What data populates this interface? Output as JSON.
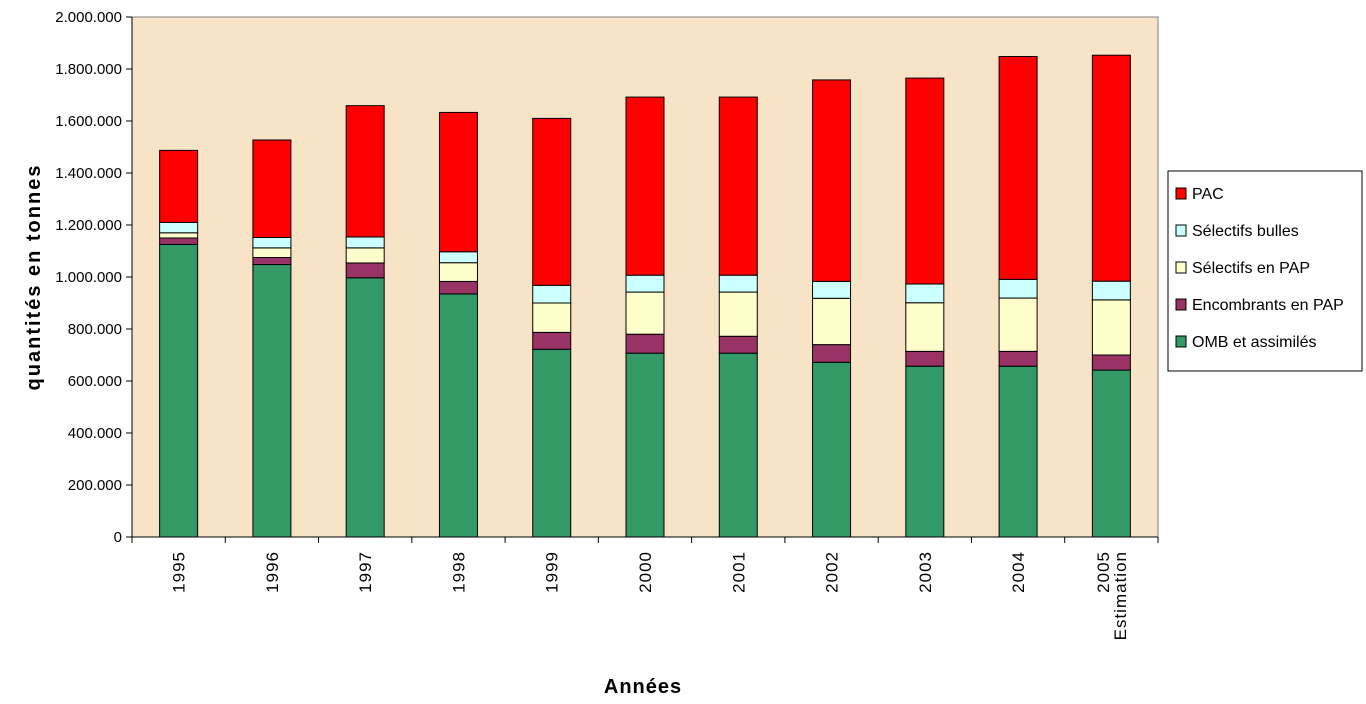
{
  "chart_data": {
    "type": "bar",
    "stacked": true,
    "categories": [
      [
        "1995"
      ],
      [
        "1996"
      ],
      [
        "1997"
      ],
      [
        "1998"
      ],
      [
        "1999"
      ],
      [
        "2000"
      ],
      [
        "2001"
      ],
      [
        "2002"
      ],
      [
        "2003"
      ],
      [
        "2004"
      ],
      [
        "2005",
        "Estimation"
      ]
    ],
    "series": [
      {
        "name": "OMB et assimilés",
        "color": "#339966",
        "values": [
          1125000,
          1048000,
          997000,
          935000,
          722000,
          707000,
          707000,
          672000,
          657000,
          657000,
          642000
        ]
      },
      {
        "name": "Encombrants en PAP",
        "color": "#993366",
        "values": [
          25000,
          27000,
          57000,
          48000,
          65000,
          73000,
          65000,
          68000,
          57000,
          57000,
          58000
        ]
      },
      {
        "name": "Sélectifs en PAP",
        "color": "#FFFFCC",
        "values": [
          20000,
          37000,
          58000,
          72000,
          113000,
          162000,
          170000,
          178000,
          187000,
          205000,
          212000
        ]
      },
      {
        "name": "Sélectifs bulles",
        "color": "#CCFFFF",
        "values": [
          40000,
          40000,
          42000,
          42000,
          68000,
          65000,
          65000,
          65000,
          72000,
          72000,
          72000
        ]
      },
      {
        "name": "PAC",
        "color": "#FF0000",
        "values": [
          277000,
          375000,
          505000,
          536000,
          642000,
          685000,
          685000,
          775000,
          792000,
          857000,
          869000
        ]
      }
    ],
    "ylim": [
      0,
      2000000
    ],
    "yticks": [
      "0",
      "200.000",
      "400.000",
      "600.000",
      "800.000",
      "1.000.000",
      "1.200.000",
      "1.400.000",
      "1.600.000",
      "1.800.000",
      "2.000.000"
    ],
    "ylabel": "quantités en tonnes",
    "xlabel": "Années",
    "legend_position": "right",
    "legend_order": [
      "PAC",
      "Sélectifs bulles",
      "Sélectifs en PAP",
      "Encombrants en PAP",
      "OMB et assimilés"
    ],
    "plot_background": "#F7E4C6",
    "grid": false
  }
}
